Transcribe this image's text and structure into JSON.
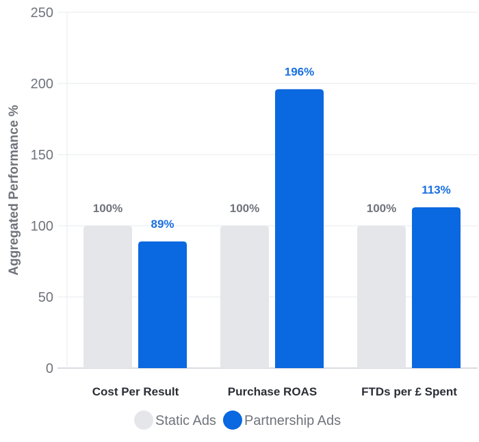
{
  "chart_data": {
    "type": "bar",
    "title": "",
    "xlabel": "",
    "ylabel": "Aggregated Performance %",
    "ylim": [
      0,
      250
    ],
    "yticks": [
      0,
      50,
      100,
      150,
      200,
      250
    ],
    "grid": true,
    "categories": [
      "Cost Per Result",
      "Purchase ROAS",
      "FTDs per £ Spent"
    ],
    "series": [
      {
        "name": "Static Ads",
        "color": "#e5e6ea",
        "label_color": "#6f737b",
        "values": [
          100,
          100,
          100
        ],
        "labels": [
          "100%",
          "100%",
          "100%"
        ]
      },
      {
        "name": "Partnership Ads",
        "color": "#0a68e0",
        "label_color": "#1a6fe0",
        "values": [
          89,
          196,
          113
        ],
        "labels": [
          "89%",
          "196%",
          "113%"
        ]
      }
    ],
    "legend": "bottom-center"
  }
}
